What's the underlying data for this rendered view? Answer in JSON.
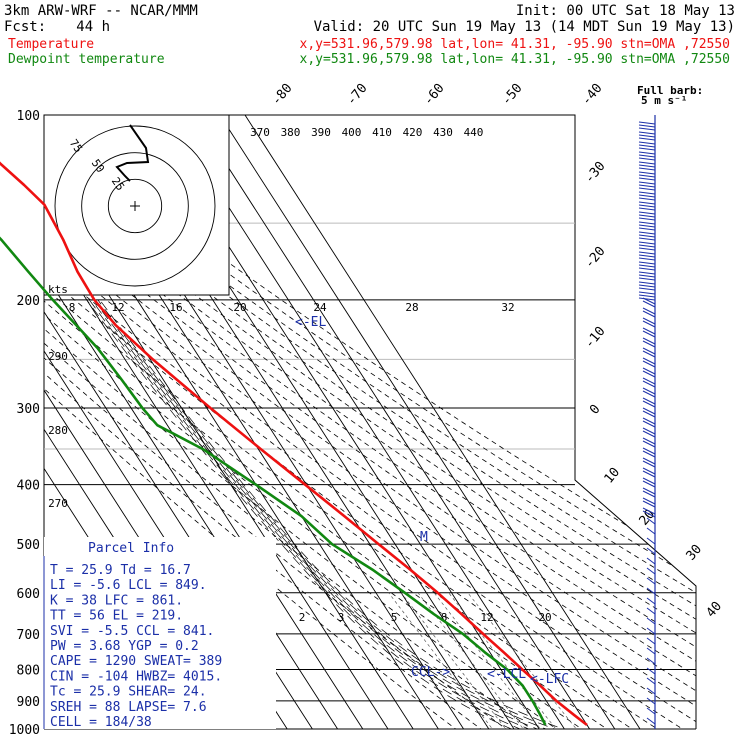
{
  "header": {
    "model": "3km ARW-WRF -- NCAR/MMM",
    "init": "Init: 00 UTC Sat 18 May 13",
    "fcst_label": "Fcst:",
    "fcst_value": "44 h",
    "valid": "Valid: 20 UTC Sun 19 May 13 (14 MDT Sun 19 May 13)",
    "temp_label": "Temperature",
    "temp_location": "x,y=531.96,579.98   lat,lon= 41.31, -95.90   stn=OMA ,72550",
    "dewp_label": "Dewpoint temperature",
    "dewp_location": "x,y=531.96,579.98   lat,lon= 41.31, -95.90   stn=OMA ,72550"
  },
  "colors": {
    "temperature": "#ee1111",
    "dewpoint": "#118811",
    "parcel": "#1b2fa8",
    "wind": "#1b2fa8"
  },
  "barb_legend": {
    "line1": "Full barb:",
    "line2": "5 m s⁻¹"
  },
  "parcel_info": {
    "title": "Parcel Info",
    "rows": [
      "T   =   25.9  Td =  16.7",
      "LI  =   -5.6  LCL =  849.",
      "K   =     38  LFC =  861.",
      "TT  =     56  EL  =  219.",
      "SVI =   -5.5  CCL =  841.",
      "PW  =   3.68  YGP =   0.2",
      "CAPE =  1290  SWEAT=  389",
      "CIN  =  -104  HWBZ= 4015.",
      "Tc  =   25.9  SHEAR=  24.",
      "SREH =    88  LAPSE=  7.6",
      "CELL =  184/38"
    ]
  },
  "hodograph": {
    "units": "kts",
    "ring_labels": [
      "25",
      "50",
      "75"
    ],
    "scale_kts_outer": 75,
    "points_uv": [
      [
        0,
        0
      ],
      [
        -1,
        4
      ],
      [
        -4,
        4
      ],
      [
        -8,
        9
      ],
      [
        3,
        11
      ],
      [
        10,
        13
      ],
      [
        7,
        24
      ],
      [
        -4,
        33
      ]
    ]
  },
  "markers": {
    "el": "<-EL",
    "ccl": "CCL->",
    "lcl": "<-LCL",
    "lfc": "<-LFC",
    "m": "M"
  },
  "chart_data": {
    "type": "line",
    "chart_kind": "Skew-T log-P diagram",
    "y_scale": "log pressure",
    "pressure_levels_hpa": [
      100,
      200,
      300,
      400,
      500,
      600,
      700,
      800,
      900,
      1000
    ],
    "pressure_tick_labels": [
      "100",
      "200",
      "300",
      "400",
      "500",
      "600",
      "700",
      "800",
      "900",
      "1000"
    ],
    "temperature_tick_labels": [
      "-80",
      "-70",
      "-60",
      "-50",
      "-40",
      "-30",
      "-20",
      "-10",
      "0",
      "10",
      "20",
      "30",
      "40"
    ],
    "dry_adiabat_labels_K": [
      "370",
      "380",
      "390",
      "400",
      "410",
      "420",
      "430",
      "440"
    ],
    "theta_e_labels_C": [
      "8",
      "12",
      "16",
      "20",
      "24",
      "28",
      "32"
    ],
    "mixing_ratio_labels": [
      "2",
      "3",
      "5",
      "8",
      "12",
      "20"
    ],
    "side_labels": [
      "290",
      "280",
      "270"
    ],
    "series": [
      {
        "name": "Temperature",
        "points": [
          {
            "p": 985,
            "t": 30.0
          },
          {
            "p": 950,
            "t": 27.5
          },
          {
            "p": 900,
            "t": 24.0
          },
          {
            "p": 850,
            "t": 21.5
          },
          {
            "p": 800,
            "t": 18.5
          },
          {
            "p": 750,
            "t": 15.5
          },
          {
            "p": 700,
            "t": 12.0
          },
          {
            "p": 650,
            "t": 8.5
          },
          {
            "p": 600,
            "t": 4.5
          },
          {
            "p": 550,
            "t": -0.5
          },
          {
            "p": 500,
            "t": -6.5
          },
          {
            "p": 450,
            "t": -13.0
          },
          {
            "p": 400,
            "t": -20.5
          },
          {
            "p": 350,
            "t": -29.0
          },
          {
            "p": 300,
            "t": -38.5
          },
          {
            "p": 250,
            "t": -49.0
          },
          {
            "p": 220,
            "t": -55.0
          },
          {
            "p": 200,
            "t": -57.0
          },
          {
            "p": 180,
            "t": -56.5
          },
          {
            "p": 160,
            "t": -54.0
          },
          {
            "p": 140,
            "t": -52.5
          },
          {
            "p": 130,
            "t": -55.5
          },
          {
            "p": 120,
            "t": -59.5
          },
          {
            "p": 110,
            "t": -62.0
          },
          {
            "p": 100,
            "t": -64.0
          }
        ]
      },
      {
        "name": "Dewpoint temperature",
        "points": [
          {
            "p": 985,
            "t": 13.5
          },
          {
            "p": 950,
            "t": 14.0
          },
          {
            "p": 900,
            "t": 14.5
          },
          {
            "p": 850,
            "t": 14.5
          },
          {
            "p": 800,
            "t": 12.5
          },
          {
            "p": 750,
            "t": 8.0
          },
          {
            "p": 700,
            "t": 4.0
          },
          {
            "p": 650,
            "t": -2.5
          },
          {
            "p": 600,
            "t": -8.5
          },
          {
            "p": 550,
            "t": -15.5
          },
          {
            "p": 500,
            "t": -25.0
          },
          {
            "p": 450,
            "t": -30.0
          },
          {
            "p": 400,
            "t": -40.0
          },
          {
            "p": 350,
            "t": -52.0
          },
          {
            "p": 320,
            "t": -64.0
          },
          {
            "p": 300,
            "t": -65.5
          },
          {
            "p": 270,
            "t": -66.5
          },
          {
            "p": 240,
            "t": -68.0
          },
          {
            "p": 200,
            "t": -73.5
          },
          {
            "p": 180,
            "t": -76.0
          },
          {
            "p": 160,
            "t": -78.5
          },
          {
            "p": 140,
            "t": -83.0
          },
          {
            "p": 120,
            "t": -85.5
          },
          {
            "p": 110,
            "t": -86.5
          },
          {
            "p": 100,
            "t": -88.5
          }
        ]
      }
    ]
  }
}
